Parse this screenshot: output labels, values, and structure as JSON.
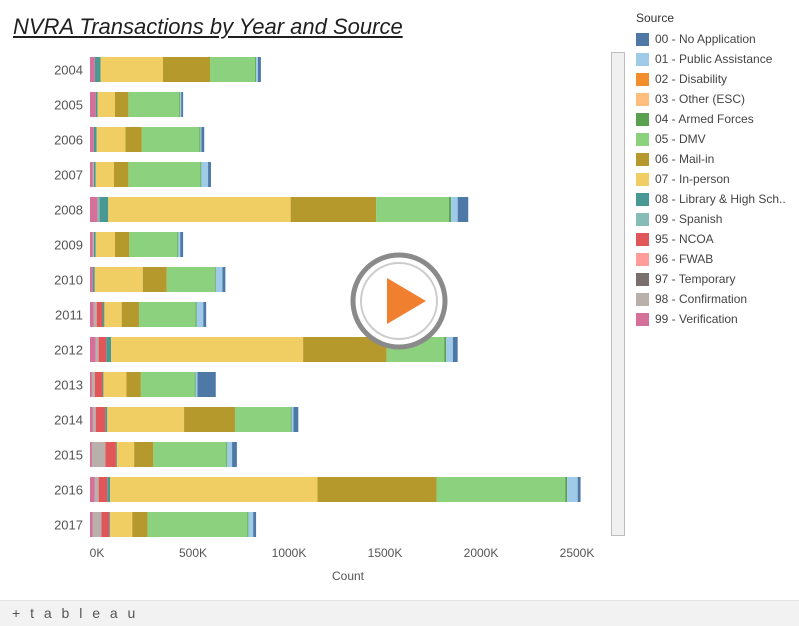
{
  "chart_data": {
    "type": "bar",
    "orientation": "horizontal",
    "stacked": true,
    "title": "NVRA Transactions by Year and Source",
    "xlabel": "Count",
    "ylabel": "",
    "xlim": [
      -15000,
      2600000
    ],
    "xticks": [
      0,
      500000,
      1000000,
      1500000,
      2000000,
      2500000
    ],
    "xtick_labels": [
      "0K",
      "500K",
      "1000K",
      "1500K",
      "2000K",
      "2500K"
    ],
    "grid": false,
    "legend_title": "Source",
    "legend_position": "right",
    "categories": [
      "2004",
      "2005",
      "2006",
      "2007",
      "2008",
      "2009",
      "2010",
      "2011",
      "2012",
      "2013",
      "2014",
      "2015",
      "2016",
      "2017"
    ],
    "series": [
      {
        "name": "99 - Verification",
        "color": "#d4709a",
        "values": [
          25000,
          30000,
          20000,
          15000,
          40000,
          15000,
          15000,
          20000,
          30000,
          10000,
          15000,
          10000,
          25000,
          15000
        ]
      },
      {
        "name": "98 - Confirmation",
        "color": "#bab0ab",
        "values": [
          0,
          0,
          0,
          5000,
          0,
          5000,
          0,
          15000,
          15000,
          15000,
          15000,
          70000,
          20000,
          45000
        ]
      },
      {
        "name": "97 - Temporary",
        "color": "#79706e",
        "values": [
          0,
          0,
          0,
          0,
          0,
          0,
          0,
          0,
          0,
          0,
          0,
          0,
          0,
          0
        ]
      },
      {
        "name": "96 - FWAB",
        "color": "#ff9d9a",
        "values": [
          0,
          0,
          0,
          0,
          0,
          0,
          0,
          0,
          0,
          0,
          0,
          0,
          0,
          0
        ]
      },
      {
        "name": "95 - NCOA",
        "color": "#e15759",
        "values": [
          0,
          0,
          0,
          0,
          0,
          0,
          0,
          30000,
          40000,
          40000,
          50000,
          55000,
          45000,
          40000
        ]
      },
      {
        "name": "09 - Spanish",
        "color": "#86bcb6",
        "values": [
          0,
          0,
          0,
          0,
          10000,
          0,
          0,
          0,
          0,
          0,
          0,
          0,
          0,
          0
        ]
      },
      {
        "name": "08 - Library & High School",
        "color": "#499894",
        "values": [
          30000,
          10000,
          15000,
          10000,
          45000,
          10000,
          10000,
          10000,
          25000,
          5000,
          10000,
          5000,
          15000,
          5000
        ]
      },
      {
        "name": "07 - In-person",
        "color": "#f1ce63",
        "values": [
          325000,
          90000,
          150000,
          95000,
          950000,
          100000,
          250000,
          90000,
          1000000,
          120000,
          400000,
          90000,
          1080000,
          115000
        ]
      },
      {
        "name": "06 - Mail-in",
        "color": "#b6992d",
        "values": [
          245000,
          70000,
          85000,
          75000,
          445000,
          75000,
          125000,
          90000,
          435000,
          75000,
          265000,
          100000,
          620000,
          80000
        ]
      },
      {
        "name": "05 - DMV",
        "color": "#8cd17d",
        "values": [
          235000,
          265000,
          300000,
          375000,
          380000,
          250000,
          250000,
          295000,
          300000,
          280000,
          290000,
          380000,
          670000,
          520000
        ]
      },
      {
        "name": "04 - Armed Forces",
        "color": "#59a14f",
        "values": [
          5000,
          5000,
          5000,
          5000,
          10000,
          5000,
          5000,
          5000,
          10000,
          5000,
          5000,
          5000,
          10000,
          5000
        ]
      },
      {
        "name": "03 - Other (ESC)",
        "color": "#ffbe7d",
        "values": [
          0,
          0,
          0,
          0,
          0,
          0,
          0,
          0,
          0,
          0,
          0,
          0,
          0,
          0
        ]
      },
      {
        "name": "02 - Disability",
        "color": "#f28e2b",
        "values": [
          0,
          0,
          0,
          0,
          0,
          0,
          0,
          0,
          0,
          0,
          0,
          0,
          0,
          0
        ]
      },
      {
        "name": "01 - Public Assistance",
        "color": "#a0cbe8",
        "values": [
          10000,
          5000,
          5000,
          35000,
          35000,
          10000,
          35000,
          35000,
          35000,
          10000,
          10000,
          25000,
          55000,
          25000
        ]
      },
      {
        "name": "00 - No Application",
        "color": "#4e79a7",
        "values": [
          15000,
          10000,
          15000,
          15000,
          55000,
          15000,
          15000,
          15000,
          25000,
          95000,
          25000,
          25000,
          15000,
          15000
        ]
      }
    ],
    "legend_order": [
      "00 - No Application",
      "01 - Public Assistance",
      "02 - Disability",
      "03 - Other (ESC)",
      "04 - Armed Forces",
      "05 - DMV",
      "06 - Mail-in",
      "07 - In-person",
      "08 - Library & High Sch..",
      "09 - Spanish",
      "95 - NCOA",
      "96 - FWAB",
      "97 - Temporary",
      "98 - Confirmation",
      "99 - Verification"
    ],
    "legend_colors": [
      "#4e79a7",
      "#a0cbe8",
      "#f28e2b",
      "#ffbe7d",
      "#59a14f",
      "#8cd17d",
      "#b6992d",
      "#f1ce63",
      "#499894",
      "#86bcb6",
      "#e15759",
      "#ff9d9a",
      "#79706e",
      "#bab0ab",
      "#d4709a"
    ]
  },
  "ui": {
    "title": "NVRA Transactions by Year and Source",
    "legend_title": "Source",
    "footer_brand": "+ t a b l e a u",
    "play_icon": "play-button-icon",
    "play_color": "#f08030"
  }
}
